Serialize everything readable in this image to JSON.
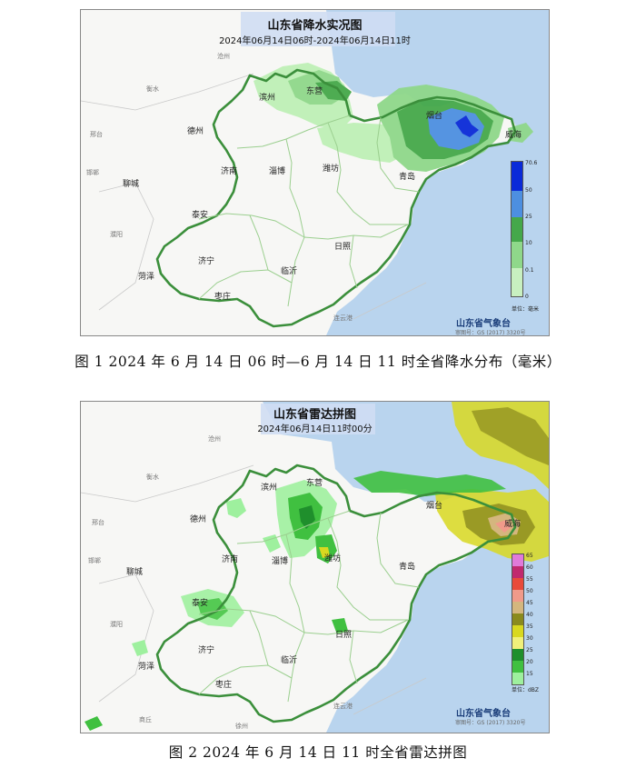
{
  "figure1": {
    "title": "山东省降水实况图",
    "subtitle": "2024年06月14日06时-2024年06月14日11时",
    "cities": [
      "滨州",
      "东营",
      "德州",
      "济南",
      "淄博",
      "潍坊",
      "烟台",
      "威海",
      "青岛",
      "聊城",
      "泰安",
      "日照",
      "菏泽",
      "济宁",
      "临沂",
      "枣庄"
    ],
    "neighbor_labels": [
      "衡水",
      "邢台",
      "邯郸",
      "濮阳",
      "沧州",
      "连云港"
    ],
    "legend": {
      "ticks": [
        "70.6",
        "50",
        "25",
        "10",
        "0.1",
        "0"
      ],
      "unit": "单位：毫米",
      "colors": [
        "#0a2ad8",
        "#4d8fe0",
        "#45a84a",
        "#8fd88a",
        "#c8f0c0",
        "#ffffff"
      ]
    },
    "org": "山东省气象台",
    "approval": "审图号：GS (2017) 3320号",
    "caption": "图 1  2024 年 6 月 14 日 06 时—6 月 14 日 11 时全省降水分布（毫米）"
  },
  "figure2": {
    "title": "山东省雷达拼图",
    "subtitle": "2024年06月14日11时00分",
    "cities": [
      "东营",
      "滨州",
      "德州",
      "济南",
      "淄博",
      "潍坊",
      "烟台",
      "威海",
      "青岛",
      "聊城",
      "泰安",
      "日照",
      "菏泽",
      "济宁",
      "临沂",
      "枣庄"
    ],
    "neighbor_labels": [
      "沧州",
      "衡水",
      "邢台",
      "邯郸",
      "濮阳",
      "商丘",
      "徐州",
      "连云港"
    ],
    "legend": {
      "ticks": [
        "65",
        "60",
        "55",
        "50",
        "45",
        "40",
        "35",
        "30",
        "25",
        "20",
        "15"
      ],
      "unit": "单位：dBZ",
      "colors": [
        "#e07ad9",
        "#c0286e",
        "#e84a3a",
        "#f09a8a",
        "#d4b67e",
        "#8a8a1e",
        "#d8d820",
        "#f0f07a",
        "#1f8f2c",
        "#40c040",
        "#9ef09e"
      ]
    },
    "org": "山东省气象台",
    "approval": "审图号：GS (2017) 3320号",
    "caption": "图 2  2024 年 6 月 14 日 11 时全省雷达拼图"
  }
}
